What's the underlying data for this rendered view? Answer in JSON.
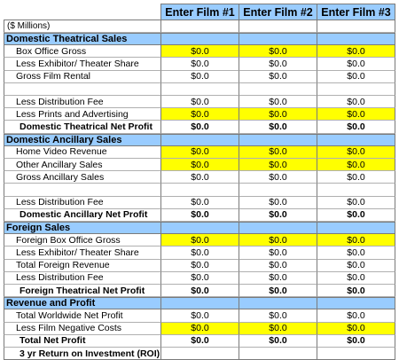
{
  "header": {
    "films": [
      "Enter Film #1",
      "Enter Film #2",
      "Enter Film #3"
    ]
  },
  "units_note": "($ Millions)",
  "rows": [
    {
      "type": "section",
      "label": "Domestic Theatrical Sales"
    },
    {
      "type": "item",
      "label": "Box Office Gross",
      "values": [
        "$0.0",
        "$0.0",
        "$0.0"
      ],
      "highlight": true
    },
    {
      "type": "item",
      "label": "Less Exhibitor/ Theater Share",
      "values": [
        "$0.0",
        "$0.0",
        "$0.0"
      ],
      "highlight": false
    },
    {
      "type": "item",
      "label": "Gross Film Rental",
      "values": [
        "$0.0",
        "$0.0",
        "$0.0"
      ],
      "highlight": false
    },
    {
      "type": "blank"
    },
    {
      "type": "item",
      "label": "Less Distribution Fee",
      "values": [
        "$0.0",
        "$0.0",
        "$0.0"
      ],
      "highlight": false
    },
    {
      "type": "item",
      "label": "Less Prints and Advertising",
      "values": [
        "$0.0",
        "$0.0",
        "$0.0"
      ],
      "highlight": true
    },
    {
      "type": "sub",
      "label": "Domestic Theatrical Net Profit",
      "values": [
        "$0.0",
        "$0.0",
        "$0.0"
      ],
      "highlight": false
    },
    {
      "type": "section",
      "label": "Domestic Ancillary Sales"
    },
    {
      "type": "item",
      "label": "Home Video Revenue",
      "values": [
        "$0.0",
        "$0.0",
        "$0.0"
      ],
      "highlight": true
    },
    {
      "type": "item",
      "label": "Other Ancillary Sales",
      "values": [
        "$0.0",
        "$0.0",
        "$0.0"
      ],
      "highlight": true
    },
    {
      "type": "item",
      "label": "Gross Ancillary Sales",
      "values": [
        "$0.0",
        "$0.0",
        "$0.0"
      ],
      "highlight": false
    },
    {
      "type": "blank"
    },
    {
      "type": "item",
      "label": "Less Distribution Fee",
      "values": [
        "$0.0",
        "$0.0",
        "$0.0"
      ],
      "highlight": false
    },
    {
      "type": "sub",
      "label": "Domestic Ancillary Net Profit",
      "values": [
        "$0.0",
        "$0.0",
        "$0.0"
      ],
      "highlight": false
    },
    {
      "type": "section",
      "label": "Foreign Sales"
    },
    {
      "type": "item",
      "label": "Foreign Box Office Gross",
      "values": [
        "$0.0",
        "$0.0",
        "$0.0"
      ],
      "highlight": true
    },
    {
      "type": "item",
      "label": "Less Exhibitor/ Theater Share",
      "values": [
        "$0.0",
        "$0.0",
        "$0.0"
      ],
      "highlight": false
    },
    {
      "type": "item",
      "label": "Total Foreign Revenue",
      "values": [
        "$0.0",
        "$0.0",
        "$0.0"
      ],
      "highlight": false
    },
    {
      "type": "item",
      "label": "Less Distribution Fee",
      "values": [
        "$0.0",
        "$0.0",
        "$0.0"
      ],
      "highlight": false
    },
    {
      "type": "sub",
      "label": "Foreign Theatrical Net Profit",
      "values": [
        "$0.0",
        "$0.0",
        "$0.0"
      ],
      "highlight": false
    },
    {
      "type": "section",
      "label": "Revenue and Profit"
    },
    {
      "type": "item",
      "label": "Total Worldwide Net Profit",
      "values": [
        "$0.0",
        "$0.0",
        "$0.0"
      ],
      "highlight": false
    },
    {
      "type": "item",
      "label": "Less Film Negative Costs",
      "values": [
        "$0.0",
        "$0.0",
        "$0.0"
      ],
      "highlight": true
    },
    {
      "type": "sub",
      "label": "Total Net Profit",
      "values": [
        "$0.0",
        "$0.0",
        "$0.0"
      ],
      "highlight": false
    },
    {
      "type": "sub",
      "label": "3 yr Return on Investment (ROI)",
      "values": [
        "",
        "",
        ""
      ],
      "highlight": false
    }
  ],
  "colors": {
    "header_fill": "#99ccff",
    "input_fill": "#ffff00"
  }
}
